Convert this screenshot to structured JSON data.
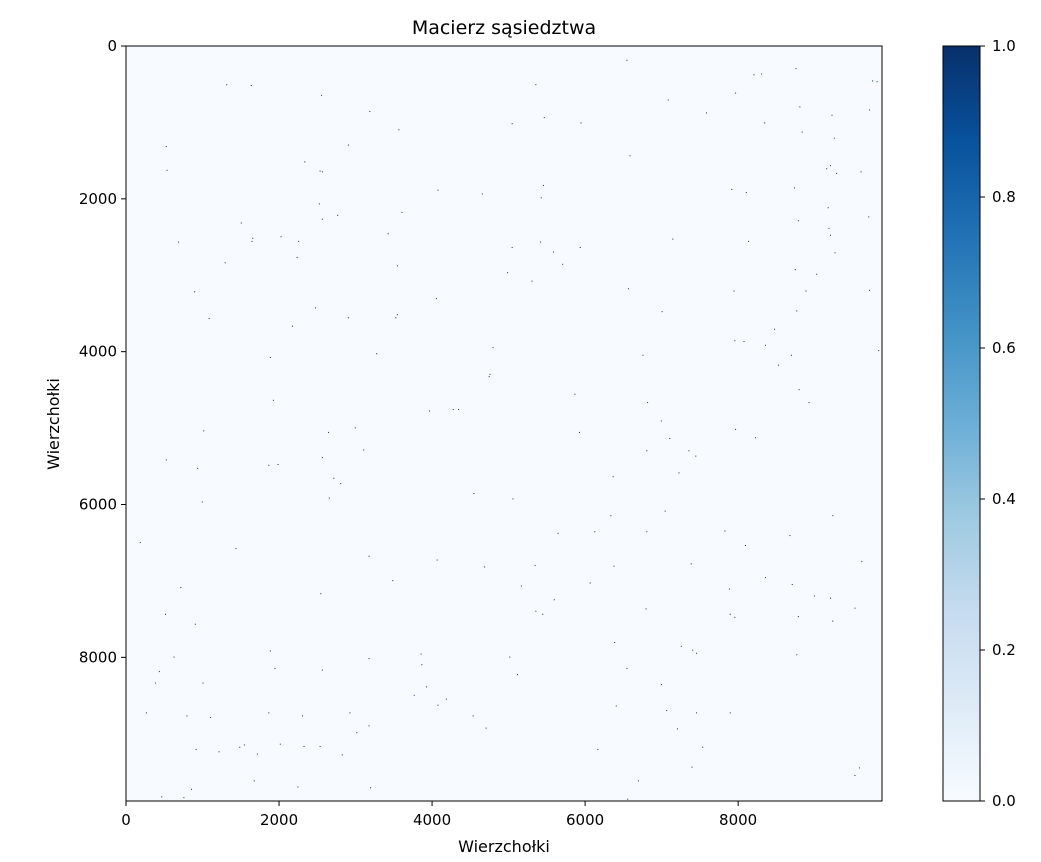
{
  "chart_data": {
    "type": "heatmap",
    "title": "Macierz sąsiedztwa",
    "xlabel": "Wierzchołki",
    "ylabel": "Wierzchołki",
    "n_vertices": 9880,
    "xlim": [
      0,
      9880
    ],
    "ylim": [
      9880,
      0
    ],
    "x_ticks": [
      0,
      2000,
      4000,
      6000,
      8000
    ],
    "x_tick_labels": [
      "0",
      "2000",
      "4000",
      "6000",
      "8000"
    ],
    "y_ticks": [
      0,
      2000,
      4000,
      6000,
      8000
    ],
    "y_tick_labels": [
      "0",
      "2000",
      "4000",
      "6000",
      "8000"
    ],
    "colormap": "Blues",
    "colormap_stops": [
      "#f7fbff",
      "#deebf7",
      "#c6dbef",
      "#9ecae1",
      "#6baed6",
      "#4292c6",
      "#2171b5",
      "#08519c",
      "#08306b"
    ],
    "value_range": [
      0.0,
      1.0
    ],
    "colorbar_ticks": [
      0.0,
      0.2,
      0.4,
      0.6,
      0.8,
      1.0
    ],
    "colorbar_tick_labels": [
      "0.0",
      "0.2",
      "0.4",
      "0.6",
      "0.8",
      "1.0"
    ],
    "nonzero_value": 1.0,
    "nonzero_cells": [
      [
        6540,
        180
      ],
      [
        8750,
        290
      ],
      [
        8200,
        370
      ],
      [
        8300,
        360
      ],
      [
        9810,
        460
      ],
      [
        9750,
        450
      ],
      [
        1310,
        500
      ],
      [
        1630,
        510
      ],
      [
        5350,
        500
      ],
      [
        7960,
        610
      ],
      [
        2550,
        640
      ],
      [
        7080,
        700
      ],
      [
        9910,
        720
      ],
      [
        8800,
        790
      ],
      [
        9710,
        830
      ],
      [
        3180,
        850
      ],
      [
        7580,
        870
      ],
      [
        9220,
        900
      ],
      [
        5460,
        930
      ],
      [
        8340,
        1000
      ],
      [
        5040,
        1010
      ],
      [
        5940,
        1000
      ],
      [
        3560,
        1090
      ],
      [
        8830,
        1120
      ],
      [
        9250,
        1200
      ],
      [
        520,
        1310
      ],
      [
        2900,
        1290
      ],
      [
        6580,
        1430
      ],
      [
        2330,
        1510
      ],
      [
        9200,
        1560
      ],
      [
        9150,
        1600
      ],
      [
        530,
        1620
      ],
      [
        2530,
        1630
      ],
      [
        2560,
        1640
      ],
      [
        9280,
        1660
      ],
      [
        9600,
        1640
      ],
      [
        8730,
        1850
      ],
      [
        5450,
        1820
      ],
      [
        4070,
        1880
      ],
      [
        7910,
        1870
      ],
      [
        8100,
        1910
      ],
      [
        4650,
        1930
      ],
      [
        5420,
        1980
      ],
      [
        2520,
        2060
      ],
      [
        9170,
        2110
      ],
      [
        3600,
        2170
      ],
      [
        2760,
        2210
      ],
      [
        9700,
        2230
      ],
      [
        2560,
        2260
      ],
      [
        8780,
        2280
      ],
      [
        1500,
        2310
      ],
      [
        9180,
        2380
      ],
      [
        3420,
        2450
      ],
      [
        9200,
        2470
      ],
      [
        2020,
        2490
      ],
      [
        1650,
        2510
      ],
      [
        2250,
        2550
      ],
      [
        680,
        2560
      ],
      [
        5410,
        2560
      ],
      [
        8130,
        2550
      ],
      [
        7140,
        2520
      ],
      [
        1640,
        2550
      ],
      [
        5040,
        2630
      ],
      [
        5930,
        2630
      ],
      [
        5580,
        2690
      ],
      [
        9260,
        2700
      ],
      [
        2230,
        2760
      ],
      [
        1290,
        2830
      ],
      [
        3540,
        2870
      ],
      [
        5700,
        2850
      ],
      [
        8740,
        2920
      ],
      [
        9020,
        2980
      ],
      [
        4980,
        2960
      ],
      [
        5300,
        3070
      ],
      [
        6560,
        3170
      ],
      [
        890,
        3210
      ],
      [
        7940,
        3200
      ],
      [
        8880,
        3200
      ],
      [
        9710,
        3190
      ],
      [
        4050,
        3300
      ],
      [
        2470,
        3420
      ],
      [
        7000,
        3470
      ],
      [
        8760,
        3460
      ],
      [
        1080,
        3560
      ],
      [
        3540,
        3510
      ],
      [
        3520,
        3550
      ],
      [
        2900,
        3550
      ],
      [
        2170,
        3660
      ],
      [
        8470,
        3700
      ],
      [
        7950,
        3850
      ],
      [
        8070,
        3860
      ],
      [
        8350,
        3910
      ],
      [
        4790,
        3940
      ],
      [
        3270,
        4020
      ],
      [
        8690,
        4040
      ],
      [
        6750,
        4040
      ],
      [
        9830,
        3980
      ],
      [
        1880,
        4070
      ],
      [
        8520,
        4170
      ],
      [
        4750,
        4290
      ],
      [
        4740,
        4320
      ],
      [
        8790,
        4490
      ],
      [
        5860,
        4550
      ],
      [
        6810,
        4660
      ],
      [
        8920,
        4660
      ],
      [
        1920,
        4630
      ],
      [
        4270,
        4750
      ],
      [
        4340,
        4750
      ],
      [
        3960,
        4770
      ],
      [
        6990,
        4900
      ],
      [
        7100,
        5130
      ],
      [
        2640,
        5050
      ],
      [
        2990,
        4990
      ],
      [
        5920,
        5050
      ],
      [
        7960,
        5010
      ],
      [
        1010,
        5030
      ],
      [
        8220,
        5120
      ],
      [
        3100,
        5280
      ],
      [
        6800,
        5290
      ],
      [
        7350,
        5290
      ],
      [
        7440,
        5360
      ],
      [
        520,
        5410
      ],
      [
        2560,
        5380
      ],
      [
        1860,
        5480
      ],
      [
        1980,
        5470
      ],
      [
        930,
        5520
      ],
      [
        7220,
        5580
      ],
      [
        6360,
        5630
      ],
      [
        2710,
        5650
      ],
      [
        2800,
        5720
      ],
      [
        4540,
        5850
      ],
      [
        2650,
        5910
      ],
      [
        990,
        5960
      ],
      [
        5050,
        5920
      ],
      [
        7040,
        6080
      ],
      [
        6330,
        6140
      ],
      [
        9230,
        6140
      ],
      [
        7820,
        6340
      ],
      [
        6800,
        6350
      ],
      [
        6120,
        6350
      ],
      [
        5640,
        6370
      ],
      [
        8670,
        6400
      ],
      [
        180,
        6490
      ],
      [
        9930,
        6530
      ],
      [
        8090,
        6530
      ],
      [
        1430,
        6570
      ],
      [
        3170,
        6670
      ],
      [
        4060,
        6720
      ],
      [
        7380,
        6770
      ],
      [
        6370,
        6800
      ],
      [
        4680,
        6810
      ],
      [
        5340,
        6790
      ],
      [
        9610,
        6740
      ],
      [
        8350,
        6950
      ],
      [
        3480,
        6990
      ],
      [
        6060,
        7020
      ],
      [
        8700,
        7040
      ],
      [
        5160,
        7060
      ],
      [
        710,
        7080
      ],
      [
        7880,
        7100
      ],
      [
        9200,
        7220
      ],
      [
        2540,
        7160
      ],
      [
        8990,
        7190
      ],
      [
        5590,
        7240
      ],
      [
        6790,
        7360
      ],
      [
        9520,
        7350
      ],
      [
        5350,
        7390
      ],
      [
        5440,
        7430
      ],
      [
        510,
        7430
      ],
      [
        7890,
        7430
      ],
      [
        7950,
        7470
      ],
      [
        8780,
        7460
      ],
      [
        9230,
        7520
      ],
      [
        900,
        7560
      ],
      [
        6380,
        7800
      ],
      [
        7250,
        7850
      ],
      [
        7400,
        7900
      ],
      [
        7450,
        7940
      ],
      [
        8760,
        7960
      ],
      [
        1880,
        7910
      ],
      [
        3170,
        8010
      ],
      [
        3850,
        7950
      ],
      [
        5010,
        7990
      ],
      [
        620,
        7990
      ],
      [
        3860,
        8090
      ],
      [
        1940,
        8140
      ],
      [
        2560,
        8160
      ],
      [
        6540,
        8140
      ],
      [
        430,
        8180
      ],
      [
        5110,
        8220
      ],
      [
        380,
        8330
      ],
      [
        1000,
        8330
      ],
      [
        6990,
        8350
      ],
      [
        3920,
        8380
      ],
      [
        3760,
        8490
      ],
      [
        4180,
        8540
      ],
      [
        4070,
        8620
      ],
      [
        6400,
        8630
      ],
      [
        7060,
        8690
      ],
      [
        260,
        8720
      ],
      [
        1860,
        8720
      ],
      [
        7450,
        8720
      ],
      [
        7890,
        8720
      ],
      [
        790,
        8760
      ],
      [
        2300,
        8760
      ],
      [
        4530,
        8760
      ],
      [
        2920,
        8720
      ],
      [
        1100,
        8780
      ],
      [
        3170,
        8890
      ],
      [
        4700,
        8920
      ],
      [
        7200,
        8930
      ],
      [
        3010,
        8980
      ],
      [
        2320,
        9160
      ],
      [
        2010,
        9130
      ],
      [
        1540,
        9140
      ],
      [
        1480,
        9170
      ],
      [
        2530,
        9160
      ],
      [
        910,
        9200
      ],
      [
        6160,
        9200
      ],
      [
        7530,
        9170
      ],
      [
        1210,
        9230
      ],
      [
        1710,
        9260
      ],
      [
        2820,
        9270
      ],
      [
        7390,
        9430
      ],
      [
        9520,
        9540
      ],
      [
        9580,
        9440
      ],
      [
        1670,
        9610
      ],
      [
        6690,
        9610
      ],
      [
        850,
        9720
      ],
      [
        2240,
        9690
      ],
      [
        3190,
        9700
      ],
      [
        460,
        9820
      ],
      [
        750,
        9830
      ],
      [
        6550,
        9850
      ]
    ]
  }
}
